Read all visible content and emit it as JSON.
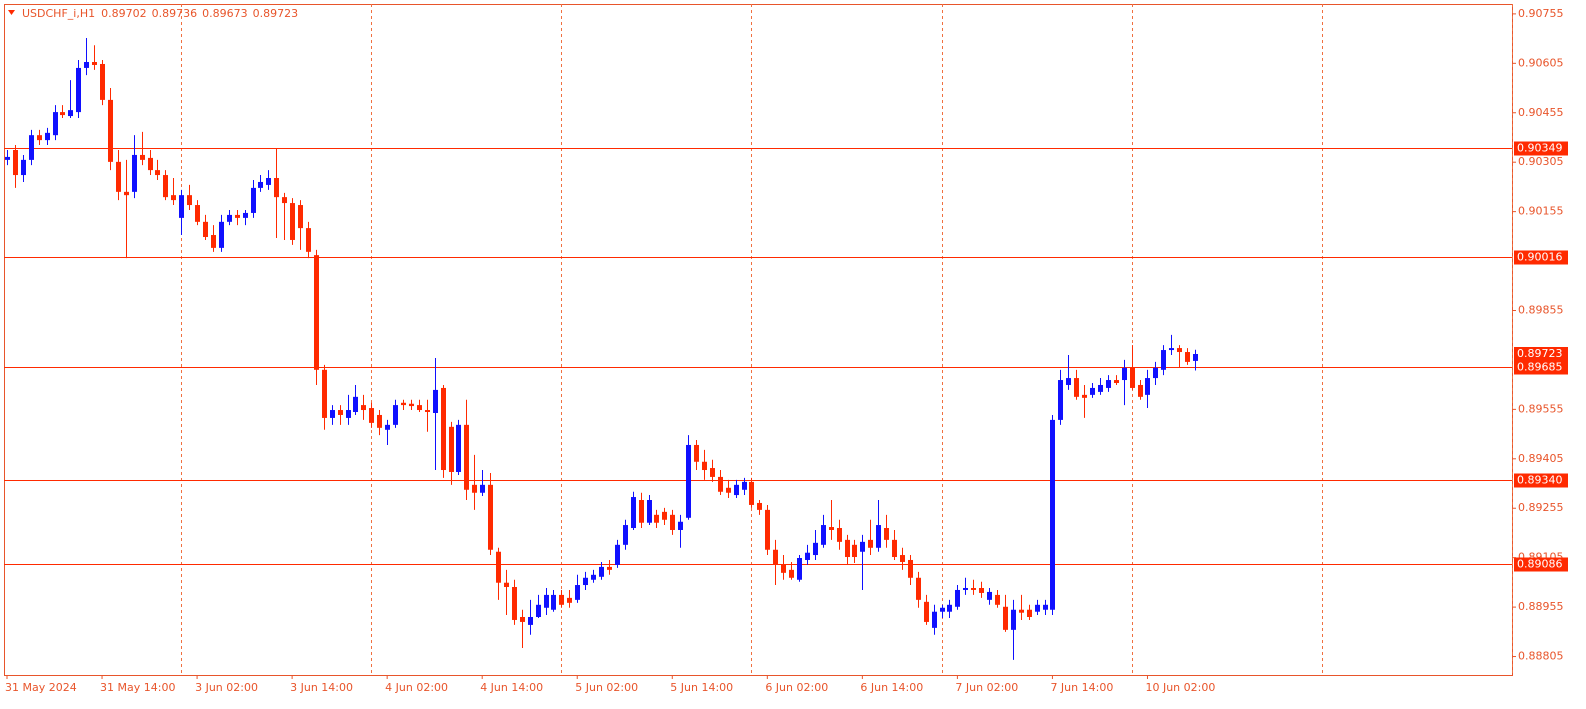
{
  "chart_data": {
    "type": "candlestick",
    "title": "USDCHF_i,H1",
    "categories": [
      "31 May 2024",
      null,
      null,
      null,
      null,
      null,
      null,
      null,
      null,
      null,
      null,
      null,
      "31 May 14:00",
      null,
      null,
      null,
      null,
      null,
      null,
      null,
      null,
      null,
      null,
      null,
      "3 Jun 02:00",
      null,
      null,
      null,
      null,
      null,
      null,
      null,
      null,
      null,
      null,
      null,
      "3 Jun 14:00",
      null,
      null,
      null,
      null,
      null,
      null,
      null,
      null,
      null,
      null,
      null,
      "4 Jun 02:00",
      null,
      null,
      null,
      null,
      null,
      null,
      null,
      null,
      null,
      null,
      null,
      "4 Jun 14:00",
      null,
      null,
      null,
      null,
      null,
      null,
      null,
      null,
      null,
      null,
      null,
      "5 Jun 02:00",
      null,
      null,
      null,
      null,
      null,
      null,
      null,
      null,
      null,
      null,
      null,
      "5 Jun 14:00",
      null,
      null,
      null,
      null,
      null,
      null,
      null,
      null,
      null,
      null,
      null,
      "6 Jun 02:00",
      null,
      null,
      null,
      null,
      null,
      null,
      null,
      null,
      null,
      null,
      null,
      "6 Jun 14:00",
      null,
      null,
      null,
      null,
      null,
      null,
      null,
      null,
      null,
      null,
      null,
      "7 Jun 02:00",
      null,
      null,
      null,
      null,
      null,
      null,
      null,
      null,
      null,
      null,
      null,
      "7 Jun 14:00",
      null,
      null,
      null,
      null,
      null,
      null,
      null,
      null,
      null,
      null,
      null,
      "10 Jun 02:00",
      null,
      null,
      null,
      null,
      null,
      null
    ],
    "open": [
      0.90312,
      0.90342,
      0.90266,
      0.90312,
      0.90387,
      0.90372,
      0.90387,
      0.90457,
      0.90445,
      0.90457,
      0.90591,
      0.90609,
      0.90603,
      0.90494,
      0.90306,
      0.90215,
      0.90215,
      0.90327,
      0.90318,
      0.90281,
      0.90266,
      0.90205,
      0.90136,
      0.90205,
      0.90175,
      0.90124,
      0.90084,
      0.90045,
      0.90124,
      0.90145,
      0.90136,
      0.90151,
      0.90227,
      0.90236,
      0.90257,
      0.90199,
      0.90181,
      0.90175,
      0.90105,
      0.90023,
      0.89675,
      0.89529,
      0.89553,
      0.89529,
      0.89547,
      0.89568,
      0.89559,
      0.89538,
      0.89493,
      0.89508,
      0.89575,
      0.89572,
      0.89568,
      0.89553,
      0.89544,
      0.8962,
      0.89502,
      0.89365,
      0.89508,
      0.89326,
      0.89302,
      0.89326,
      0.89123,
      0.89029,
      0.89016,
      0.88925,
      0.88901,
      0.88925,
      0.88953,
      0.88947,
      0.88992,
      0.88983,
      0.88977,
      0.89022,
      0.89038,
      0.89047,
      0.89077,
      0.89083,
      0.89144,
      0.89195,
      0.8928,
      0.89211,
      0.89235,
      0.89244,
      0.89235,
      0.89189,
      0.89226,
      0.89447,
      0.89396,
      0.89377,
      0.8935,
      0.89317,
      0.89295,
      0.89311,
      0.89335,
      0.89271,
      0.8925,
      0.89129,
      0.89083,
      0.89068,
      0.89038,
      0.89098,
      0.89113,
      0.89144,
      0.89198,
      0.89195,
      0.89159,
      0.89144,
      0.89123,
      0.89159,
      0.89135,
      0.89195,
      0.89159,
      0.89113,
      0.89098,
      0.89044,
      0.88971,
      0.88892,
      0.88941,
      0.88941,
      0.88956,
      0.89007,
      0.89013,
      0.89013,
      0.88977,
      0.88992,
      0.88956,
      0.88886,
      0.88947,
      0.88947,
      0.88941,
      0.88947,
      0.88947,
      0.89523,
      0.89629,
      0.8965,
      0.89599,
      0.89599,
      0.89608,
      0.8962,
      0.89644,
      0.89644,
      0.89681,
      0.89629,
      0.89599,
      0.8965,
      0.89675,
      0.89735,
      0.89741,
      0.89729,
      0.89702
    ],
    "high": [
      0.90342,
      0.90357,
      0.90327,
      0.90403,
      0.90403,
      0.90409,
      0.90478,
      0.90478,
      0.90554,
      0.90615,
      0.90682,
      0.9066,
      0.90615,
      0.9053,
      0.90342,
      0.90312,
      0.90387,
      0.90397,
      0.90342,
      0.90312,
      0.90281,
      0.90257,
      0.90221,
      0.90236,
      0.9019,
      0.90145,
      0.90114,
      0.90145,
      0.9016,
      0.9016,
      0.9016,
      0.90251,
      0.90266,
      0.90281,
      0.90348,
      0.90212,
      0.90196,
      0.9019,
      0.90124,
      0.90039,
      0.8969,
      0.89568,
      0.89568,
      0.89599,
      0.89629,
      0.89599,
      0.89575,
      0.89553,
      0.89523,
      0.89584,
      0.89584,
      0.89584,
      0.89584,
      0.89584,
      0.89711,
      0.89629,
      0.89517,
      0.89523,
      0.89584,
      0.89417,
      0.89371,
      0.89362,
      0.89135,
      0.89068,
      0.89038,
      0.88947,
      0.88977,
      0.88992,
      0.89013,
      0.89007,
      0.89007,
      0.89007,
      0.89053,
      0.89062,
      0.89068,
      0.89092,
      0.89098,
      0.89159,
      0.8922,
      0.89305,
      0.89302,
      0.89295,
      0.8925,
      0.89256,
      0.8925,
      0.89235,
      0.89477,
      0.89462,
      0.89432,
      0.89402,
      0.89371,
      0.89341,
      0.89341,
      0.89347,
      0.89347,
      0.8928,
      0.89265,
      0.89159,
      0.89113,
      0.89092,
      0.89113,
      0.89144,
      0.89189,
      0.89235,
      0.8928,
      0.8922,
      0.89174,
      0.89159,
      0.89174,
      0.8922,
      0.8928,
      0.89235,
      0.89189,
      0.89135,
      0.89113,
      0.89062,
      0.88992,
      0.88962,
      0.88962,
      0.88977,
      0.89022,
      0.89044,
      0.89038,
      0.89032,
      0.89013,
      0.89007,
      0.88992,
      0.88977,
      0.88992,
      0.88962,
      0.88977,
      0.88977,
      0.89538,
      0.89675,
      0.8972,
      0.89675,
      0.89629,
      0.89635,
      0.8965,
      0.89659,
      0.89659,
      0.89705,
      0.8975,
      0.89644,
      0.89675,
      0.89699,
      0.8975,
      0.89781,
      0.8975,
      0.89741,
      0.89736
    ],
    "low": [
      0.90296,
      0.90227,
      0.90245,
      0.90296,
      0.90357,
      0.90357,
      0.90372,
      0.90439,
      0.90439,
      0.90439,
      0.90569,
      0.90585,
      0.90478,
      0.90281,
      0.9019,
      0.90014,
      0.90196,
      0.90296,
      0.90266,
      0.90251,
      0.9019,
      0.90175,
      0.90084,
      0.9016,
      0.90114,
      0.90069,
      0.90033,
      0.90033,
      0.90114,
      0.90114,
      0.90114,
      0.90136,
      0.90215,
      0.90221,
      0.90075,
      0.90069,
      0.90054,
      0.90039,
      0.90014,
      0.89629,
      0.89493,
      0.89508,
      0.89508,
      0.89508,
      0.89538,
      0.89523,
      0.89499,
      0.89477,
      0.89447,
      0.89499,
      0.89553,
      0.89553,
      0.89547,
      0.89487,
      0.89371,
      0.89347,
      0.89326,
      0.89356,
      0.8928,
      0.8925,
      0.89292,
      0.89113,
      0.88977,
      0.88931,
      0.88901,
      0.88831,
      0.88871,
      0.88922,
      0.88931,
      0.88941,
      0.88953,
      0.88953,
      0.88968,
      0.89007,
      0.89029,
      0.89038,
      0.89053,
      0.89074,
      0.89129,
      0.89189,
      0.89195,
      0.89204,
      0.89195,
      0.89204,
      0.89174,
      0.89135,
      0.8922,
      0.89371,
      0.89341,
      0.89335,
      0.89295,
      0.89286,
      0.89286,
      0.89295,
      0.89256,
      0.89235,
      0.89113,
      0.89022,
      0.89038,
      0.89038,
      0.89032,
      0.89083,
      0.89098,
      0.89135,
      0.89159,
      0.89129,
      0.89083,
      0.89089,
      0.89007,
      0.89113,
      0.89123,
      0.89135,
      0.89098,
      0.89068,
      0.89022,
      0.88953,
      0.88901,
      0.88871,
      0.88922,
      0.88922,
      0.88947,
      0.88992,
      0.88992,
      0.88983,
      0.88962,
      0.88953,
      0.8888,
      0.88795,
      0.88916,
      0.88916,
      0.88931,
      0.88931,
      0.88931,
      0.89508,
      0.89614,
      0.89584,
      0.89529,
      0.8959,
      0.89599,
      0.89608,
      0.89629,
      0.89568,
      0.89614,
      0.89584,
      0.89559,
      0.89629,
      0.89659,
      0.8972,
      0.89681,
      0.8969,
      0.89673
    ],
    "close": [
      0.90321,
      0.90266,
      0.90312,
      0.90387,
      0.90372,
      0.90394,
      0.90457,
      0.90448,
      0.90463,
      0.90591,
      0.90609,
      0.906,
      0.90494,
      0.90306,
      0.90215,
      0.90205,
      0.90327,
      0.90312,
      0.90281,
      0.90266,
      0.90199,
      0.9019,
      0.90205,
      0.90175,
      0.90124,
      0.90078,
      0.90045,
      0.90124,
      0.90145,
      0.90136,
      0.90151,
      0.90227,
      0.90245,
      0.90257,
      0.90199,
      0.90181,
      0.90069,
      0.90105,
      0.90033,
      0.89675,
      0.89529,
      0.89553,
      0.89538,
      0.89553,
      0.89593,
      0.89553,
      0.89514,
      0.89499,
      0.89508,
      0.89568,
      0.89568,
      0.89565,
      0.89553,
      0.89547,
      0.89614,
      0.89371,
      0.89365,
      0.89508,
      0.89311,
      0.89302,
      0.89326,
      0.89129,
      0.89029,
      0.89016,
      0.88916,
      0.8891,
      0.88925,
      0.88962,
      0.88992,
      0.88992,
      0.88962,
      0.88968,
      0.89022,
      0.89044,
      0.89053,
      0.89077,
      0.89068,
      0.89144,
      0.89204,
      0.89289,
      0.89211,
      0.8928,
      0.89211,
      0.8922,
      0.89189,
      0.89214,
      0.89447,
      0.89396,
      0.89371,
      0.8935,
      0.89305,
      0.89302,
      0.89326,
      0.89335,
      0.89265,
      0.8925,
      0.89129,
      0.89083,
      0.89059,
      0.89044,
      0.89104,
      0.8912,
      0.8915,
      0.89204,
      0.89189,
      0.89153,
      0.89107,
      0.89107,
      0.89153,
      0.89135,
      0.89204,
      0.89159,
      0.89107,
      0.89092,
      0.89044,
      0.88977,
      0.8891,
      0.88941,
      0.88953,
      0.88962,
      0.89007,
      0.89013,
      0.89007,
      0.88998,
      0.89001,
      0.88962,
      0.88886,
      0.88947,
      0.88938,
      0.88925,
      0.88962,
      0.88962,
      0.89523,
      0.89644,
      0.8965,
      0.89593,
      0.8959,
      0.8962,
      0.89629,
      0.89644,
      0.89635,
      0.89681,
      0.8962,
      0.89593,
      0.8965,
      0.89681,
      0.89735,
      0.89741,
      0.89729,
      0.89699,
      0.89723
    ],
    "up_color": "#1010ff",
    "down_color": "#ff2a00",
    "ylim": [
      0.88749,
      0.90785
    ],
    "yticks": [
      0.88805,
      0.88955,
      0.89105,
      0.89255,
      0.89405,
      0.89555,
      0.89855,
      0.90155,
      0.90305,
      0.90455,
      0.90605,
      0.90755
    ],
    "levels": [
      0.90349,
      0.90016,
      0.89685,
      {
        "value": 0.8934,
        "label": "0.89340"
      },
      0.89086
    ],
    "level_color": "#ff2a00"
  }
}
